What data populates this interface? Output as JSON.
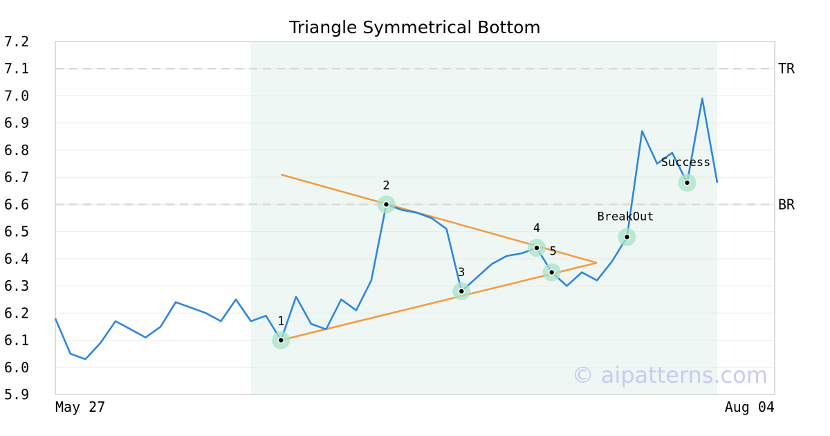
{
  "chart_data": {
    "type": "line",
    "title": "Triangle Symmetrical Bottom",
    "xlabel": "",
    "ylabel": "",
    "x_tick_labels": [
      "May 27",
      "Aug 04"
    ],
    "ylim": [
      5.9,
      7.2
    ],
    "yticks": [
      5.9,
      6.0,
      6.1,
      6.2,
      6.3,
      6.4,
      6.5,
      6.6,
      6.7,
      6.8,
      6.9,
      7.0,
      7.1,
      7.2
    ],
    "grid": true,
    "series": [
      {
        "name": "",
        "color": "#2e86de",
        "values": [
          6.18,
          6.05,
          6.03,
          6.09,
          6.17,
          6.14,
          6.11,
          6.15,
          6.24,
          6.22,
          6.2,
          6.17,
          6.25,
          6.17,
          6.19,
          6.1,
          6.26,
          6.16,
          6.14,
          6.25,
          6.21,
          6.32,
          6.6,
          6.58,
          6.57,
          6.55,
          6.51,
          6.28,
          6.33,
          6.38,
          6.41,
          6.42,
          6.44,
          6.35,
          6.3,
          6.35,
          6.32,
          6.39,
          6.48,
          6.87,
          6.75,
          6.79,
          6.68,
          6.99,
          6.68
        ]
      }
    ],
    "pattern_region": {
      "start_index": 13,
      "end_index": 44,
      "color": "#eef7f3"
    },
    "trendlines": [
      {
        "color": "#f39c45",
        "from": {
          "index": 15,
          "value": 6.71
        },
        "to": {
          "index": 36,
          "value": 6.385
        }
      },
      {
        "color": "#f39c45",
        "from": {
          "index": 15,
          "value": 6.1
        },
        "to": {
          "index": 36,
          "value": 6.385
        }
      }
    ],
    "reference_lines": [
      {
        "label": "TR",
        "value": 7.1,
        "color": "#d9d9d9"
      },
      {
        "label": "BR",
        "value": 6.6,
        "color": "#d9d9d9"
      }
    ],
    "points": [
      {
        "label": "1",
        "index": 15,
        "value": 6.1
      },
      {
        "label": "2",
        "index": 22,
        "value": 6.6
      },
      {
        "label": "3",
        "index": 27,
        "value": 6.28
      },
      {
        "label": "4",
        "index": 32,
        "value": 6.44
      },
      {
        "label": "5",
        "index": 33,
        "value": 6.35
      },
      {
        "label": "BreakOut",
        "index": 38,
        "value": 6.48
      },
      {
        "label": "Success",
        "index": 42,
        "value": 6.68
      }
    ],
    "watermark": "© aipatterns.com"
  }
}
